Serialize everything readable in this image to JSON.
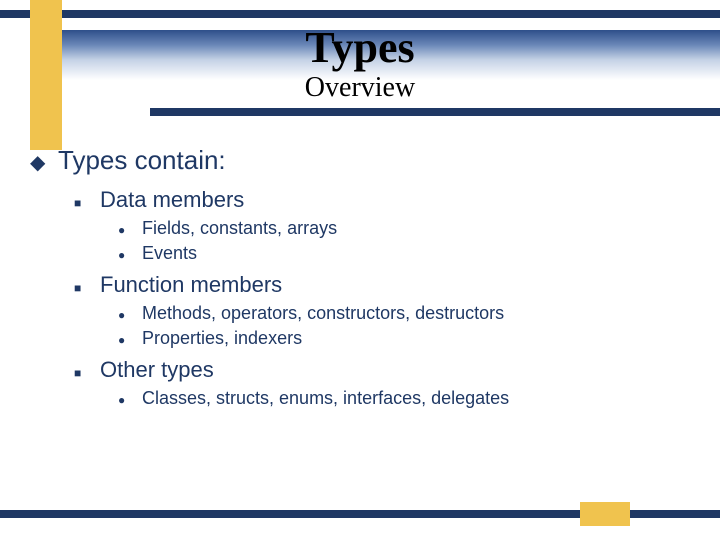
{
  "colors": {
    "navy": "#1f3864",
    "yellow": "#f0c34e",
    "white": "#ffffff",
    "gradient_top": "#2e4f8a",
    "gradient_mid": "#6a87b8",
    "gradient_low": "#c5d2e6"
  },
  "typography": {
    "title_family": "Times New Roman",
    "body_family": "Arial",
    "title_size_pt": 33,
    "subtitle_size_pt": 21,
    "lvl1_size_pt": 20,
    "lvl2_size_pt": 17,
    "lvl3_size_pt": 14
  },
  "slide": {
    "title": "Types",
    "subtitle": "Overview",
    "bullets": {
      "lvl1_symbol": "◆",
      "lvl2_symbol": "■",
      "lvl3_symbol": "●"
    },
    "content": {
      "heading": "Types contain:",
      "sections": [
        {
          "label": "Data members",
          "items": [
            "Fields, constants, arrays",
            "Events"
          ]
        },
        {
          "label": "Function members",
          "items": [
            "Methods, operators, constructors, destructors",
            "Properties, indexers"
          ]
        },
        {
          "label": "Other types",
          "items": [
            "Classes, structs, enums, interfaces, delegates"
          ]
        }
      ]
    }
  }
}
